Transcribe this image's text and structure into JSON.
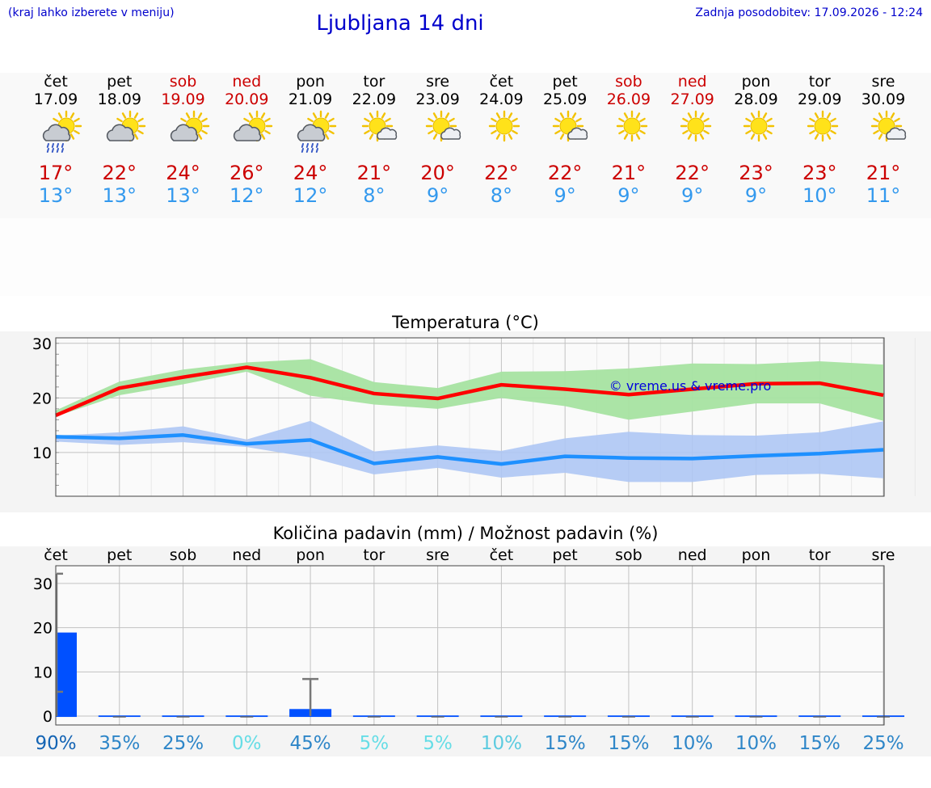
{
  "header": {
    "menu_hint": "(kraj lahko izberete v meniju)",
    "title": "Ljubljana 14 dni",
    "updated": "Zadnja posodobitev: 17.09.2026 - 12:24"
  },
  "days": [
    {
      "name": "čet",
      "date": "17.09",
      "weekend": false,
      "icon": "sun-cloud-rain-icon",
      "tmax": "17°",
      "tmin": "13°"
    },
    {
      "name": "pet",
      "date": "18.09",
      "weekend": false,
      "icon": "sun-cloud-icon",
      "tmax": "22°",
      "tmin": "13°"
    },
    {
      "name": "sob",
      "date": "19.09",
      "weekend": true,
      "icon": "sun-cloud-icon",
      "tmax": "24°",
      "tmin": "13°"
    },
    {
      "name": "ned",
      "date": "20.09",
      "weekend": true,
      "icon": "sun-cloud-icon",
      "tmax": "26°",
      "tmin": "12°"
    },
    {
      "name": "pon",
      "date": "21.09",
      "weekend": false,
      "icon": "sun-cloud-rain-icon",
      "tmax": "24°",
      "tmin": "12°"
    },
    {
      "name": "tor",
      "date": "22.09",
      "weekend": false,
      "icon": "sun-small-cloud-icon",
      "tmax": "21°",
      "tmin": "8°"
    },
    {
      "name": "sre",
      "date": "23.09",
      "weekend": false,
      "icon": "sun-small-cloud-icon",
      "tmax": "20°",
      "tmin": "9°"
    },
    {
      "name": "čet",
      "date": "24.09",
      "weekend": false,
      "icon": "sun-icon",
      "tmax": "22°",
      "tmin": "8°"
    },
    {
      "name": "pet",
      "date": "25.09",
      "weekend": false,
      "icon": "sun-small-cloud-icon",
      "tmax": "22°",
      "tmin": "9°"
    },
    {
      "name": "sob",
      "date": "26.09",
      "weekend": true,
      "icon": "sun-icon",
      "tmax": "21°",
      "tmin": "9°"
    },
    {
      "name": "ned",
      "date": "27.09",
      "weekend": true,
      "icon": "sun-icon",
      "tmax": "22°",
      "tmin": "9°"
    },
    {
      "name": "pon",
      "date": "28.09",
      "weekend": false,
      "icon": "sun-icon",
      "tmax": "23°",
      "tmin": "9°"
    },
    {
      "name": "tor",
      "date": "29.09",
      "weekend": false,
      "icon": "sun-icon",
      "tmax": "23°",
      "tmin": "10°"
    },
    {
      "name": "sre",
      "date": "30.09",
      "weekend": false,
      "icon": "sun-small-cloud-icon",
      "tmax": "21°",
      "tmin": "11°"
    }
  ],
  "colors": {
    "max_line": "#ff0000",
    "max_band": "#a6e3a1",
    "min_line": "#1e90ff",
    "min_band": "#aec6f4",
    "weekend": "#cc0000",
    "bar": "#0050ff",
    "whisker": "#777777"
  },
  "chart_data": [
    {
      "type": "line",
      "title": "Temperatura (°C)",
      "categories": [
        "17.09",
        "18.09",
        "19.09",
        "20.09",
        "21.09",
        "22.09",
        "23.09",
        "24.09",
        "25.09",
        "26.09",
        "27.09",
        "28.09",
        "29.09",
        "30.09"
      ],
      "ylim": [
        2,
        31
      ],
      "yticks": [
        10,
        20,
        30
      ],
      "grid": true,
      "watermark": "© vreme.us & vreme.pro",
      "x": [
        0,
        0.5,
        1,
        1.5,
        2,
        2.5,
        3,
        3.5,
        4,
        4.5,
        5,
        5.5,
        6,
        6.5,
        7,
        7.5,
        8,
        8.5,
        9,
        9.5,
        10,
        10.5,
        11,
        11.5,
        12,
        12.5,
        13,
        13.5
      ],
      "series": [
        {
          "role": "max",
          "values": [
            16.8,
            21.8,
            23.8,
            25.6,
            23.7,
            20.8,
            19.9,
            22.4,
            21.6,
            20.6,
            21.6,
            22.6,
            22.7,
            20.5
          ],
          "band_low": [
            16.6,
            20.5,
            22.5,
            24.8,
            20.4,
            18.8,
            18.0,
            20.0,
            18.5,
            16.0,
            17.5,
            19.0,
            19.0,
            15.8
          ],
          "band_high": [
            17.7,
            23.0,
            25.2,
            26.5,
            27.1,
            22.9,
            21.8,
            24.8,
            24.9,
            25.4,
            26.3,
            26.2,
            26.7,
            26.1
          ]
        },
        {
          "role": "min",
          "values": [
            12.9,
            12.6,
            13.2,
            11.6,
            12.3,
            8.0,
            9.2,
            7.9,
            9.3,
            9.0,
            8.9,
            9.4,
            9.8,
            10.5
          ],
          "band_low": [
            12.0,
            11.4,
            11.9,
            11.0,
            9.1,
            6.0,
            7.2,
            5.4,
            6.3,
            4.6,
            4.6,
            5.9,
            6.1,
            5.3
          ],
          "band_high": [
            13.1,
            13.7,
            14.8,
            12.4,
            15.8,
            10.2,
            11.3,
            10.3,
            12.6,
            13.8,
            13.2,
            13.1,
            13.7,
            15.7
          ]
        }
      ]
    },
    {
      "type": "bar",
      "title": "Količina padavin (mm) / Možnost padavin (%)",
      "categories": [
        "čet",
        "pet",
        "sob",
        "ned",
        "pon",
        "tor",
        "sre",
        "čet",
        "pet",
        "sob",
        "ned",
        "pon",
        "tor",
        "sre"
      ],
      "ylim": [
        -2,
        34
      ],
      "yticks": [
        0,
        10,
        20,
        30
      ],
      "grid": true,
      "values": [
        18.9,
        0,
        0,
        0,
        1.6,
        0,
        0,
        0,
        0,
        0,
        0,
        0,
        0,
        0
      ],
      "whisker_low": [
        5.5,
        0,
        0,
        0,
        0,
        0,
        0,
        0,
        0,
        0,
        0,
        0,
        0,
        0
      ],
      "whisker_high": [
        32.2,
        0,
        0,
        0,
        8.4,
        0,
        0,
        0,
        0,
        0,
        0,
        0,
        0,
        0
      ],
      "probability": [
        "90%",
        "35%",
        "25%",
        "0%",
        "45%",
        "5%",
        "5%",
        "10%",
        "15%",
        "15%",
        "10%",
        "10%",
        "15%",
        "25%"
      ],
      "probability_colors": [
        "#1464b4",
        "#2e86c8",
        "#2e86c8",
        "#66dde6",
        "#2e86c8",
        "#66dde6",
        "#66dde6",
        "#5ccbe0",
        "#2e86c8",
        "#2e86c8",
        "#2e86c8",
        "#2e86c8",
        "#2e86c8",
        "#2e86c8"
      ]
    }
  ]
}
